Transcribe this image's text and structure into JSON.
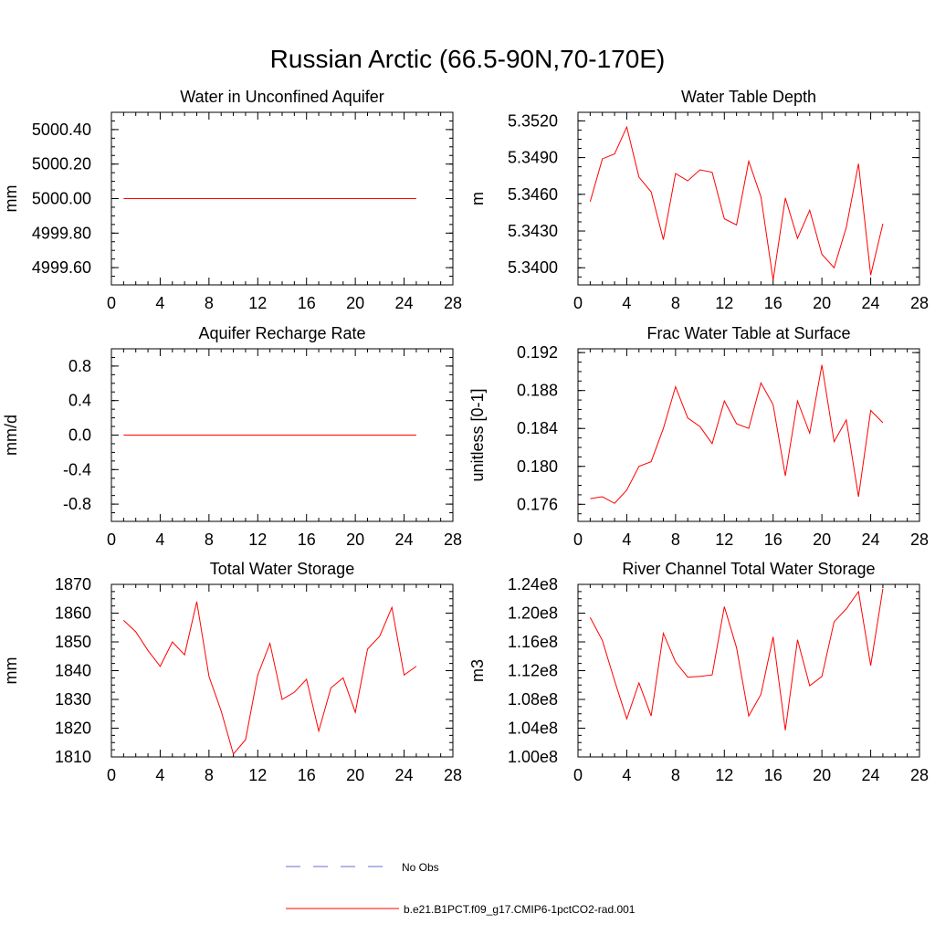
{
  "title": "Russian Arctic (66.5-90N,70-170E)",
  "colors": {
    "model": "#ff0000",
    "obs": "#6b6bd0",
    "axis": "#000000"
  },
  "legend": {
    "placement": "bottom-center",
    "entries": [
      {
        "label": "No Obs",
        "style": "dashed",
        "color": "#6b6bd0"
      },
      {
        "label": "b.e21.B1PCT.f09_g17.CMIP6-1pctCO2-rad.001",
        "style": "solid",
        "color": "#ff0000"
      }
    ]
  },
  "chart_data": [
    {
      "type": "line",
      "title": "Water in Unconfined Aquifer",
      "ylabel": "mm",
      "xlim": [
        0,
        28
      ],
      "ylim": [
        4999.5,
        5000.5
      ],
      "xticks": [
        0,
        4,
        8,
        12,
        16,
        20,
        24,
        28
      ],
      "yticks": [
        4999.6,
        4999.8,
        5000.0,
        5000.2,
        5000.4
      ],
      "ytick_labels": [
        "4999.60",
        "4999.80",
        "5000.00",
        "5000.20",
        "5000.40"
      ],
      "grid": false,
      "series": [
        {
          "values": [
            5000.0,
            5000.0,
            5000.0,
            5000.0,
            5000.0,
            5000.0,
            5000.0,
            5000.0,
            5000.0,
            5000.0,
            5000.0,
            5000.0,
            5000.0,
            5000.0,
            5000.0,
            5000.0,
            5000.0,
            5000.0,
            5000.0,
            5000.0,
            5000.0,
            5000.0,
            5000.0,
            5000.0,
            5000.0
          ]
        }
      ]
    },
    {
      "type": "line",
      "title": "Water Table Depth",
      "ylabel": "m",
      "xlim": [
        0,
        28
      ],
      "ylim": [
        5.3386,
        5.3527
      ],
      "xticks": [
        0,
        4,
        8,
        12,
        16,
        20,
        24,
        28
      ],
      "yticks": [
        5.34,
        5.343,
        5.346,
        5.349,
        5.352
      ],
      "ytick_labels": [
        "5.3400",
        "5.3430",
        "5.3460",
        "5.3490",
        "5.3520"
      ],
      "grid": false,
      "series": [
        {
          "values": [
            5.3454,
            5.3489,
            5.3493,
            5.3515,
            5.3474,
            5.3462,
            5.3423,
            5.3477,
            5.3471,
            5.348,
            5.3478,
            5.344,
            5.3435,
            5.3487,
            5.3458,
            5.339,
            5.3457,
            5.3424,
            5.3447,
            5.3411,
            5.34,
            5.3433,
            5.3485,
            5.3394,
            5.3436
          ]
        }
      ]
    },
    {
      "type": "line",
      "title": "Aquifer Recharge Rate",
      "ylabel": "mm/d",
      "xlim": [
        0,
        28
      ],
      "ylim": [
        -1.0,
        1.0
      ],
      "xticks": [
        0,
        4,
        8,
        12,
        16,
        20,
        24,
        28
      ],
      "yticks": [
        -0.8,
        -0.4,
        0.0,
        0.4,
        0.8
      ],
      "ytick_labels": [
        "-0.8",
        "-0.4",
        "0.0",
        "0.4",
        "0.8"
      ],
      "grid": false,
      "series": [
        {
          "values": [
            0,
            0,
            0,
            0,
            0,
            0,
            0,
            0,
            0,
            0,
            0,
            0,
            0,
            0,
            0,
            0,
            0,
            0,
            0,
            0,
            0,
            0,
            0,
            0,
            0
          ]
        }
      ]
    },
    {
      "type": "line",
      "title": "Frac Water Table at Surface",
      "ylabel": "unitless [0-1]",
      "xlim": [
        0,
        28
      ],
      "ylim": [
        0.1742,
        0.1924
      ],
      "xticks": [
        0,
        4,
        8,
        12,
        16,
        20,
        24,
        28
      ],
      "yticks": [
        0.176,
        0.18,
        0.184,
        0.188,
        0.192
      ],
      "ytick_labels": [
        "0.176",
        "0.180",
        "0.184",
        "0.188",
        "0.192"
      ],
      "grid": false,
      "series": [
        {
          "values": [
            0.1766,
            0.1768,
            0.1761,
            0.1775,
            0.18,
            0.1805,
            0.184,
            0.1884,
            0.1851,
            0.1842,
            0.1824,
            0.1869,
            0.1845,
            0.184,
            0.1888,
            0.1865,
            0.179,
            0.1869,
            0.1835,
            0.1907,
            0.1826,
            0.1849,
            0.1768,
            0.1859,
            0.1846
          ]
        }
      ]
    },
    {
      "type": "line",
      "title": "Total Water Storage",
      "ylabel": "mm",
      "xlim": [
        0,
        28
      ],
      "ylim": [
        1810,
        1870
      ],
      "xticks": [
        0,
        4,
        8,
        12,
        16,
        20,
        24,
        28
      ],
      "yticks": [
        1810,
        1820,
        1830,
        1840,
        1850,
        1860,
        1870
      ],
      "ytick_labels": [
        "1810",
        "1820",
        "1830",
        "1840",
        "1850",
        "1860",
        "1870"
      ],
      "grid": false,
      "series": [
        {
          "values": [
            1857.5,
            1853.5,
            1847.0,
            1841.5,
            1850.0,
            1845.5,
            1864.0,
            1838.0,
            1826.0,
            1811.0,
            1816.0,
            1838.5,
            1849.5,
            1830.0,
            1832.5,
            1837.0,
            1819.0,
            1834.0,
            1837.5,
            1825.5,
            1847.5,
            1852.0,
            1862.0,
            1838.5,
            1841.5
          ]
        }
      ]
    },
    {
      "type": "line",
      "title": "River Channel Total Water Storage",
      "ylabel": "m3",
      "xlim": [
        0,
        28
      ],
      "ylim": [
        100000000,
        124000000
      ],
      "xticks": [
        0,
        4,
        8,
        12,
        16,
        20,
        24,
        28
      ],
      "yticks": [
        100000000,
        104000000,
        108000000,
        112000000,
        116000000,
        120000000,
        124000000
      ],
      "ytick_labels": [
        "1.00e8",
        "1.04e8",
        "1.08e8",
        "1.12e8",
        "1.16e8",
        "1.20e8",
        "1.24e8"
      ],
      "grid": false,
      "series": [
        {
          "values": [
            119400000,
            116200000,
            110600000,
            105300000,
            110300000,
            105700000,
            117200000,
            113200000,
            111100000,
            111200000,
            111400000,
            120900000,
            115200000,
            105700000,
            108700000,
            116700000,
            103700000,
            116300000,
            109900000,
            111200000,
            118800000,
            120600000,
            123000000,
            112700000,
            123400000
          ]
        }
      ]
    }
  ]
}
